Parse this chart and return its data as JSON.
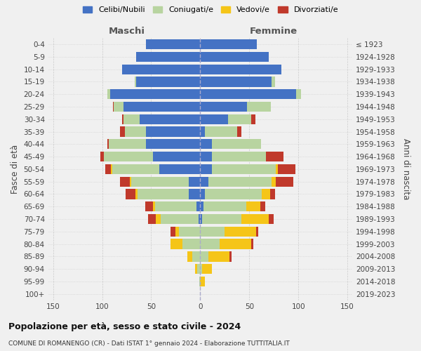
{
  "age_groups": [
    "0-4",
    "5-9",
    "10-14",
    "15-19",
    "20-24",
    "25-29",
    "30-34",
    "35-39",
    "40-44",
    "45-49",
    "50-54",
    "55-59",
    "60-64",
    "65-69",
    "70-74",
    "75-79",
    "80-84",
    "85-89",
    "90-94",
    "95-99",
    "100+"
  ],
  "birth_years": [
    "2019-2023",
    "2014-2018",
    "2009-2013",
    "2004-2008",
    "1999-2003",
    "1994-1998",
    "1989-1993",
    "1984-1988",
    "1979-1983",
    "1974-1978",
    "1969-1973",
    "1964-1968",
    "1959-1963",
    "1954-1958",
    "1949-1953",
    "1944-1948",
    "1939-1943",
    "1934-1938",
    "1929-1933",
    "1924-1928",
    "≤ 1923"
  ],
  "maschi": {
    "celibi": [
      55,
      65,
      80,
      65,
      92,
      78,
      62,
      55,
      55,
      48,
      42,
      12,
      12,
      4,
      2,
      0,
      0,
      0,
      0,
      0,
      0
    ],
    "coniugati": [
      0,
      0,
      0,
      2,
      3,
      10,
      16,
      22,
      38,
      50,
      48,
      58,
      52,
      42,
      38,
      22,
      18,
      8,
      3,
      1,
      0
    ],
    "vedovi": [
      0,
      0,
      0,
      0,
      0,
      0,
      0,
      0,
      0,
      0,
      1,
      2,
      2,
      2,
      5,
      3,
      12,
      5,
      2,
      0,
      0
    ],
    "divorziati": [
      0,
      0,
      0,
      0,
      0,
      1,
      2,
      5,
      2,
      4,
      6,
      10,
      10,
      8,
      8,
      5,
      0,
      0,
      0,
      0,
      0
    ]
  },
  "femmine": {
    "nubili": [
      58,
      70,
      83,
      73,
      98,
      48,
      28,
      5,
      12,
      12,
      12,
      8,
      5,
      3,
      2,
      0,
      0,
      0,
      0,
      0,
      0
    ],
    "coniugate": [
      0,
      0,
      0,
      3,
      5,
      24,
      24,
      33,
      50,
      55,
      65,
      65,
      58,
      44,
      40,
      25,
      20,
      8,
      2,
      0,
      0
    ],
    "vedove": [
      0,
      0,
      0,
      0,
      0,
      0,
      0,
      0,
      0,
      0,
      2,
      4,
      8,
      14,
      28,
      32,
      32,
      22,
      10,
      5,
      0
    ],
    "divorziate": [
      0,
      0,
      0,
      0,
      0,
      0,
      4,
      4,
      0,
      18,
      18,
      18,
      5,
      5,
      5,
      2,
      2,
      2,
      0,
      0,
      0
    ]
  },
  "colors": {
    "celibi_nubili": "#4472c4",
    "coniugati": "#b8d4a0",
    "vedovi": "#f5c518",
    "divorziati": "#c0392b"
  },
  "xlim": 155,
  "title": "Popolazione per età, sesso e stato civile - 2024",
  "subtitle": "COMUNE DI ROMANENGO (CR) - Dati ISTAT 1° gennaio 2024 - Elaborazione TUTTITALIA.IT",
  "xlabel_left": "Maschi",
  "xlabel_right": "Femmine",
  "ylabel_left": "Fasce di età",
  "ylabel_right": "Anni di nascita",
  "legend_labels": [
    "Celibi/Nubili",
    "Coniugati/e",
    "Vedovi/e",
    "Divorziati/e"
  ],
  "bg_color": "#f0f0f0",
  "grid_color": "#cccccc",
  "center_line_color": "#aaaacc"
}
